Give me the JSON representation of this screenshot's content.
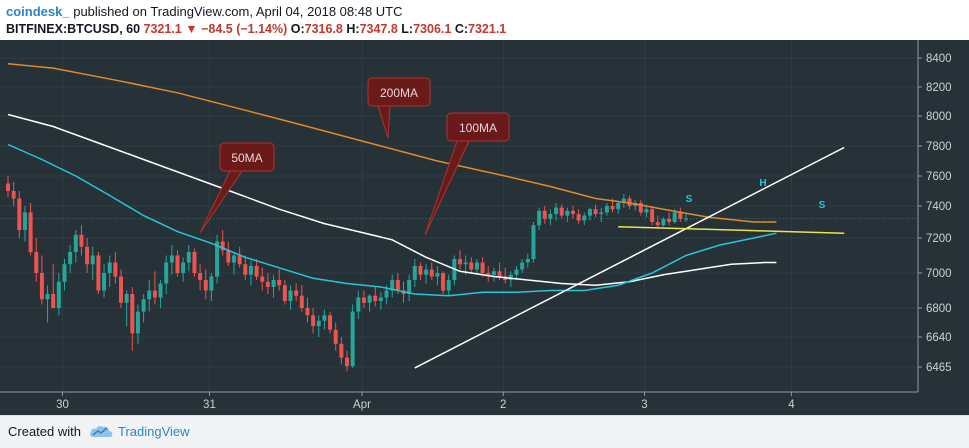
{
  "header": {
    "author": "coindesk_",
    "published": "published on TradingView.com, April 04, 2018 08:48 UTC",
    "symbol": "BITFINEX:BTCUSD, 60",
    "price": "7321.1",
    "arrow": "▼",
    "change": "−84.5 (−1.14%)",
    "ohlc": [
      {
        "label": "O:",
        "value": "7316.8"
      },
      {
        "label": "H:",
        "value": "7347.8"
      },
      {
        "label": "L:",
        "value": "7306.1"
      },
      {
        "label": "C:",
        "value": "7321.1"
      }
    ]
  },
  "footer": {
    "created_with": "Created with",
    "brand": "TradingView",
    "logo_icon": "tradingview-cloud-icon"
  },
  "colors": {
    "up": "#26a69a",
    "down": "#ef5350",
    "ma50": "#26c6da",
    "ma100": "#ffffff",
    "ma200": "#e08a2a",
    "background": "#263238",
    "support": "#e8e84a",
    "callout": "#6b1a1a"
  },
  "chart_data": {
    "type": "candlestick",
    "x_tick_labels": [
      "30",
      "31",
      "Apr",
      "2",
      "3",
      "4"
    ],
    "y_ticks": [
      8400,
      8200,
      8000,
      7800,
      7600,
      7400,
      7200,
      7000,
      6800,
      6640,
      6465
    ],
    "ylim": [
      6350,
      8480
    ],
    "last_price": 7321.1,
    "callouts": [
      {
        "label": "50MA"
      },
      {
        "label": "100MA"
      },
      {
        "label": "200MA"
      }
    ],
    "pattern_labels": [
      {
        "label": "S"
      },
      {
        "label": "H"
      },
      {
        "label": "S"
      }
    ],
    "ma200": [
      [
        0,
        8360
      ],
      [
        8,
        8330
      ],
      [
        20,
        8240
      ],
      [
        30,
        8160
      ],
      [
        40,
        8060
      ],
      [
        50,
        7960
      ],
      [
        60,
        7860
      ],
      [
        70,
        7760
      ],
      [
        76,
        7700
      ],
      [
        82,
        7650
      ],
      [
        88,
        7600
      ],
      [
        96,
        7530
      ],
      [
        104,
        7450
      ],
      [
        110,
        7420
      ],
      [
        116,
        7380
      ],
      [
        124,
        7330
      ],
      [
        132,
        7300
      ],
      [
        136,
        7300
      ]
    ],
    "ma100": [
      [
        0,
        8010
      ],
      [
        8,
        7930
      ],
      [
        16,
        7820
      ],
      [
        24,
        7710
      ],
      [
        32,
        7600
      ],
      [
        40,
        7490
      ],
      [
        48,
        7380
      ],
      [
        56,
        7290
      ],
      [
        62,
        7240
      ],
      [
        68,
        7190
      ],
      [
        74,
        7090
      ],
      [
        80,
        7010
      ],
      [
        86,
        6980
      ],
      [
        92,
        6960
      ],
      [
        98,
        6940
      ],
      [
        104,
        6930
      ],
      [
        110,
        6950
      ],
      [
        116,
        6990
      ],
      [
        122,
        7020
      ],
      [
        128,
        7050
      ],
      [
        134,
        7060
      ],
      [
        136,
        7060
      ]
    ],
    "ma50": [
      [
        0,
        7810
      ],
      [
        6,
        7710
      ],
      [
        12,
        7600
      ],
      [
        18,
        7470
      ],
      [
        24,
        7340
      ],
      [
        30,
        7240
      ],
      [
        36,
        7170
      ],
      [
        42,
        7090
      ],
      [
        48,
        7030
      ],
      [
        54,
        6970
      ],
      [
        60,
        6940
      ],
      [
        66,
        6920
      ],
      [
        72,
        6880
      ],
      [
        78,
        6870
      ],
      [
        84,
        6890
      ],
      [
        90,
        6890
      ],
      [
        96,
        6900
      ],
      [
        102,
        6900
      ],
      [
        108,
        6930
      ],
      [
        114,
        7000
      ],
      [
        120,
        7100
      ],
      [
        126,
        7160
      ],
      [
        132,
        7200
      ],
      [
        136,
        7230
      ]
    ],
    "trendline": [
      [
        72,
        6460
      ],
      [
        148,
        7790
      ]
    ],
    "support_line": [
      [
        108,
        7270
      ],
      [
        148,
        7230
      ]
    ],
    "candles": [
      [
        7550,
        7600,
        7460,
        7500
      ],
      [
        7500,
        7560,
        7400,
        7450
      ],
      [
        7450,
        7500,
        7200,
        7250
      ],
      [
        7250,
        7400,
        7180,
        7360
      ],
      [
        7360,
        7420,
        7100,
        7120
      ],
      [
        7120,
        7200,
        6950,
        7000
      ],
      [
        7000,
        7100,
        6820,
        6850
      ],
      [
        6850,
        6930,
        6720,
        6880
      ],
      [
        6880,
        7050,
        6820,
        6800
      ],
      [
        6800,
        7000,
        6760,
        6950
      ],
      [
        6950,
        7080,
        6900,
        7050
      ],
      [
        7050,
        7160,
        7000,
        7120
      ],
      [
        7120,
        7250,
        7060,
        7220
      ],
      [
        7220,
        7280,
        7100,
        7150
      ],
      [
        7150,
        7200,
        7000,
        7050
      ],
      [
        7050,
        7150,
        6960,
        7100
      ],
      [
        7100,
        7120,
        6880,
        6900
      ],
      [
        6900,
        7050,
        6860,
        7000
      ],
      [
        7000,
        7100,
        6920,
        7060
      ],
      [
        7060,
        7120,
        6940,
        6980
      ],
      [
        6980,
        7020,
        6800,
        6830
      ],
      [
        6830,
        6900,
        6700,
        6880
      ],
      [
        6880,
        6920,
        6560,
        6660
      ],
      [
        6660,
        6820,
        6600,
        6780
      ],
      [
        6780,
        6880,
        6720,
        6850
      ],
      [
        6850,
        6960,
        6780,
        6900
      ],
      [
        6900,
        7010,
        6820,
        6860
      ],
      [
        6860,
        6960,
        6800,
        6940
      ],
      [
        6940,
        7100,
        6880,
        7060
      ],
      [
        7060,
        7160,
        6990,
        7100
      ],
      [
        7100,
        7130,
        6980,
        7000
      ],
      [
        7000,
        7090,
        6950,
        7060
      ],
      [
        7060,
        7160,
        7010,
        7120
      ],
      [
        7120,
        7140,
        6980,
        7000
      ],
      [
        7000,
        7050,
        6900,
        6960
      ],
      [
        6960,
        7020,
        6850,
        6900
      ],
      [
        6900,
        7000,
        6840,
        6980
      ],
      [
        6980,
        7220,
        6940,
        7180
      ],
      [
        7180,
        7250,
        7100,
        7130
      ],
      [
        7130,
        7180,
        7040,
        7060
      ],
      [
        7060,
        7120,
        6990,
        7100
      ],
      [
        7100,
        7150,
        7030,
        7050
      ],
      [
        7050,
        7100,
        6960,
        6990
      ],
      [
        6990,
        7070,
        6930,
        7040
      ],
      [
        7040,
        7080,
        6960,
        6980
      ],
      [
        6980,
        7030,
        6900,
        6950
      ],
      [
        6950,
        7000,
        6880,
        6920
      ],
      [
        6920,
        6990,
        6860,
        6960
      ],
      [
        6960,
        7020,
        6900,
        6930
      ],
      [
        6930,
        6960,
        6820,
        6840
      ],
      [
        6840,
        6930,
        6790,
        6900
      ],
      [
        6900,
        6940,
        6840,
        6870
      ],
      [
        6870,
        6930,
        6780,
        6800
      ],
      [
        6800,
        6860,
        6720,
        6760
      ],
      [
        6760,
        6800,
        6660,
        6700
      ],
      [
        6700,
        6760,
        6640,
        6730
      ],
      [
        6730,
        6790,
        6680,
        6760
      ],
      [
        6760,
        6780,
        6660,
        6680
      ],
      [
        6680,
        6720,
        6560,
        6600
      ],
      [
        6600,
        6640,
        6480,
        6520
      ],
      [
        6520,
        6560,
        6440,
        6470
      ],
      [
        6470,
        6820,
        6460,
        6780
      ],
      [
        6780,
        6900,
        6740,
        6860
      ],
      [
        6860,
        6900,
        6800,
        6830
      ],
      [
        6830,
        6880,
        6780,
        6870
      ],
      [
        6870,
        6920,
        6810,
        6840
      ],
      [
        6840,
        6890,
        6790,
        6860
      ],
      [
        6860,
        6930,
        6820,
        6900
      ],
      [
        6900,
        6990,
        6860,
        6960
      ],
      [
        6960,
        7000,
        6880,
        6900
      ],
      [
        6900,
        6950,
        6830,
        6880
      ],
      [
        6880,
        6990,
        6840,
        6960
      ],
      [
        6960,
        7080,
        6920,
        7040
      ],
      [
        7040,
        7060,
        6960,
        6990
      ],
      [
        6990,
        7050,
        6940,
        7020
      ],
      [
        7020,
        7060,
        6960,
        6980
      ],
      [
        6980,
        7040,
        6930,
        7000
      ],
      [
        7000,
        7010,
        6880,
        6900
      ],
      [
        6900,
        6990,
        6870,
        6960
      ],
      [
        6960,
        7100,
        6930,
        7080
      ],
      [
        7080,
        7130,
        7020,
        7050
      ],
      [
        7050,
        7100,
        6990,
        7060
      ],
      [
        7060,
        7090,
        7000,
        7020
      ],
      [
        7020,
        7080,
        6990,
        7060
      ],
      [
        7060,
        7090,
        6980,
        7000
      ],
      [
        7000,
        7040,
        6950,
        6990
      ],
      [
        6990,
        7030,
        6950,
        7010
      ],
      [
        7010,
        7060,
        6960,
        6980
      ],
      [
        6980,
        7030,
        6940,
        6960
      ],
      [
        6960,
        7010,
        6920,
        6990
      ],
      [
        6990,
        7040,
        6960,
        7020
      ],
      [
        7020,
        7080,
        7000,
        7060
      ],
      [
        7060,
        7110,
        7030,
        7080
      ],
      [
        7080,
        7300,
        7060,
        7280
      ],
      [
        7280,
        7390,
        7250,
        7370
      ],
      [
        7370,
        7400,
        7290,
        7320
      ],
      [
        7320,
        7380,
        7280,
        7350
      ],
      [
        7350,
        7420,
        7310,
        7390
      ],
      [
        7390,
        7410,
        7320,
        7340
      ],
      [
        7340,
        7390,
        7300,
        7370
      ],
      [
        7370,
        7400,
        7320,
        7350
      ],
      [
        7350,
        7380,
        7290,
        7310
      ],
      [
        7310,
        7360,
        7280,
        7340
      ],
      [
        7340,
        7390,
        7310,
        7380
      ],
      [
        7380,
        7410,
        7330,
        7350
      ],
      [
        7350,
        7390,
        7300,
        7360
      ],
      [
        7360,
        7420,
        7340,
        7400
      ],
      [
        7400,
        7450,
        7360,
        7380
      ],
      [
        7380,
        7430,
        7350,
        7420
      ],
      [
        7420,
        7480,
        7390,
        7450
      ],
      [
        7450,
        7470,
        7380,
        7400
      ],
      [
        7400,
        7440,
        7370,
        7420
      ],
      [
        7420,
        7440,
        7340,
        7360
      ],
      [
        7360,
        7410,
        7330,
        7380
      ],
      [
        7380,
        7400,
        7280,
        7300
      ],
      [
        7300,
        7340,
        7260,
        7280
      ],
      [
        7280,
        7330,
        7270,
        7320
      ],
      [
        7320,
        7360,
        7280,
        7300
      ],
      [
        7300,
        7380,
        7290,
        7360
      ],
      [
        7360,
        7390,
        7300,
        7320
      ],
      [
        7320,
        7350,
        7300,
        7321
      ]
    ]
  }
}
